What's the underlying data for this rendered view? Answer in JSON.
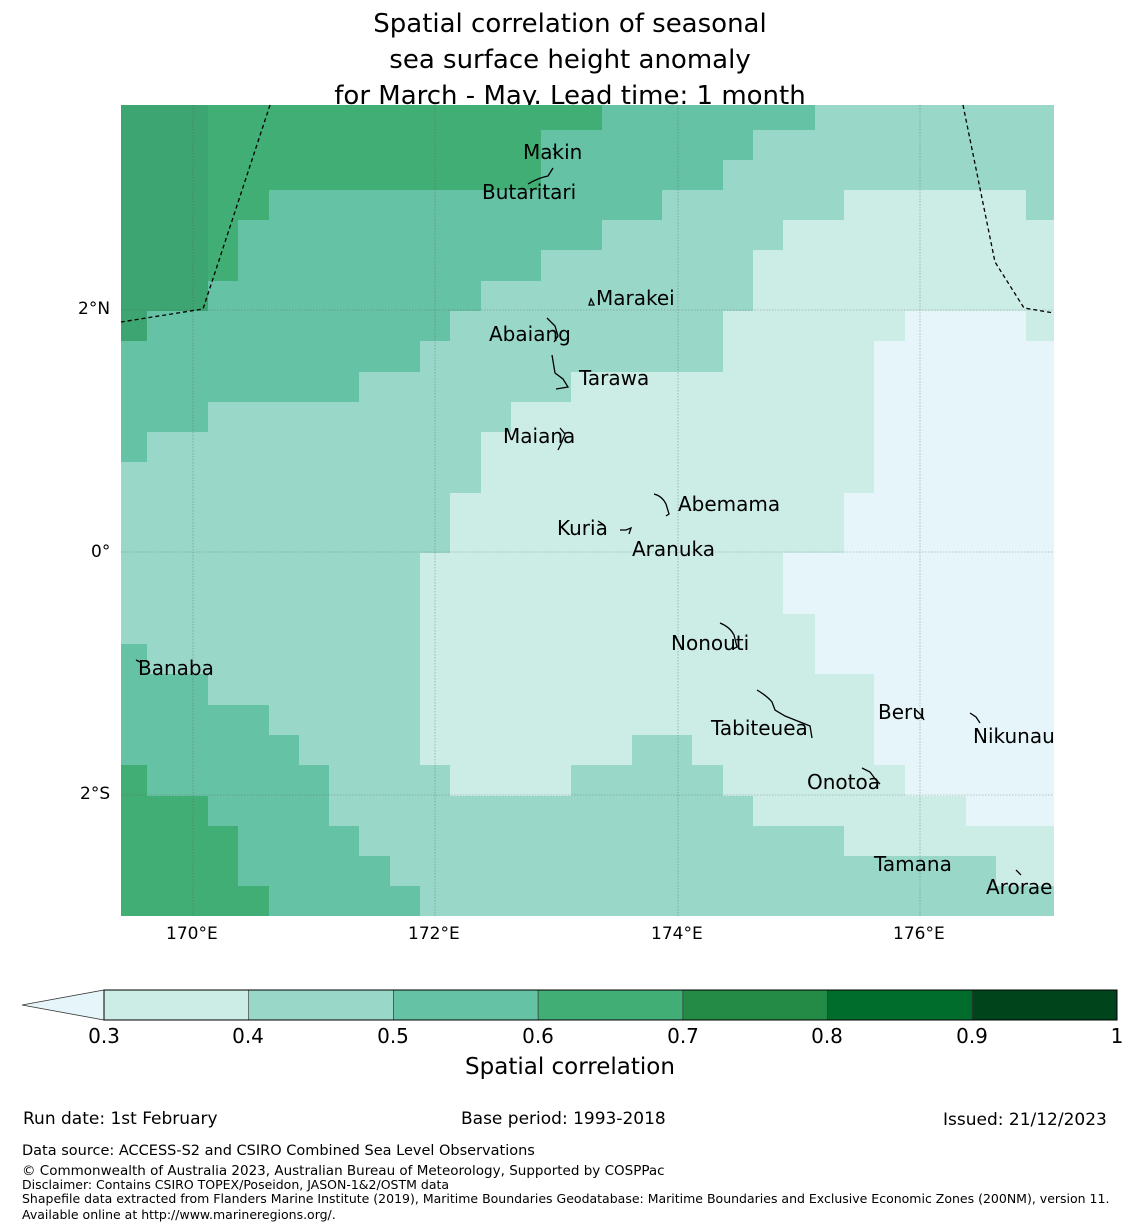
{
  "title": {
    "line1": "Spatial correlation of seasonal",
    "line2": "sea surface height anomaly",
    "line3": "for March - May. Lead time: 1 month"
  },
  "map": {
    "lon_labels": [
      "170°E",
      "172°E",
      "174°E",
      "176°E"
    ],
    "lat_labels": [
      "2°N",
      "0°",
      "2°S"
    ],
    "islands": [
      {
        "name": "Makin",
        "lon": 173.2,
        "lat": 3.3
      },
      {
        "name": "Butaritari",
        "lon": 172.8,
        "lat": 3.0
      },
      {
        "name": "Marakei",
        "lon": 173.3,
        "lat": 2.0
      },
      {
        "name": "Abaiang",
        "lon": 172.9,
        "lat": 1.8
      },
      {
        "name": "Tarawa",
        "lon": 173.0,
        "lat": 1.4
      },
      {
        "name": "Maiana",
        "lon": 173.0,
        "lat": 1.0
      },
      {
        "name": "Abemama",
        "lon": 173.9,
        "lat": 0.4
      },
      {
        "name": "Kuria",
        "lon": 173.4,
        "lat": 0.2
      },
      {
        "name": "Aranuka",
        "lon": 173.6,
        "lat": 0.1
      },
      {
        "name": "Nonouti",
        "lon": 174.4,
        "lat": -0.6
      },
      {
        "name": "Banaba",
        "lon": 169.5,
        "lat": -0.9
      },
      {
        "name": "Tabiteuea",
        "lon": 174.8,
        "lat": -1.3
      },
      {
        "name": "Beru",
        "lon": 176.0,
        "lat": -1.3
      },
      {
        "name": "Nikunau",
        "lon": 176.5,
        "lat": -1.4
      },
      {
        "name": "Onotoa",
        "lon": 175.6,
        "lat": -1.8
      },
      {
        "name": "Tamana",
        "lon": 176.0,
        "lat": -2.5
      },
      {
        "name": "Arorae",
        "lon": 176.8,
        "lat": -2.6
      }
    ]
  },
  "colorbar": {
    "title": "Spatial correlation",
    "ticks": [
      "0.3",
      "0.4",
      "0.5",
      "0.6",
      "0.7",
      "0.8",
      "0.9",
      "1"
    ],
    "colors": [
      "#ccece6",
      "#99d8c9",
      "#66c2a4",
      "#41ae76",
      "#238b45",
      "#006d2c",
      "#00441b"
    ],
    "under_color": "#e5f5f9"
  },
  "footer": {
    "run_date": "Run date: 1st February",
    "base_period": "Base period: 1993-2018",
    "issued": "Issued: 21/12/2023",
    "data_source": "Data source: ACCESS-S2 and CSIRO Combined Sea Level Observations",
    "copyright": "© Commonwealth of Australia 2023, Australian Bureau of Meteorology, Supported by COSPPac",
    "disclaimer": "Disclaimer: Contains CSIRO TOPEX/Poseidon, JASON-1&2/OSTM data",
    "shapefile": "Shapefile data extracted from Flanders Marine Institute (2019), Maritime Boundaries Geodatabase: Maritime Boundaries and Exclusive Economic Zones (200NM), version 11. Available online at http://www.marineregions.org/."
  }
}
